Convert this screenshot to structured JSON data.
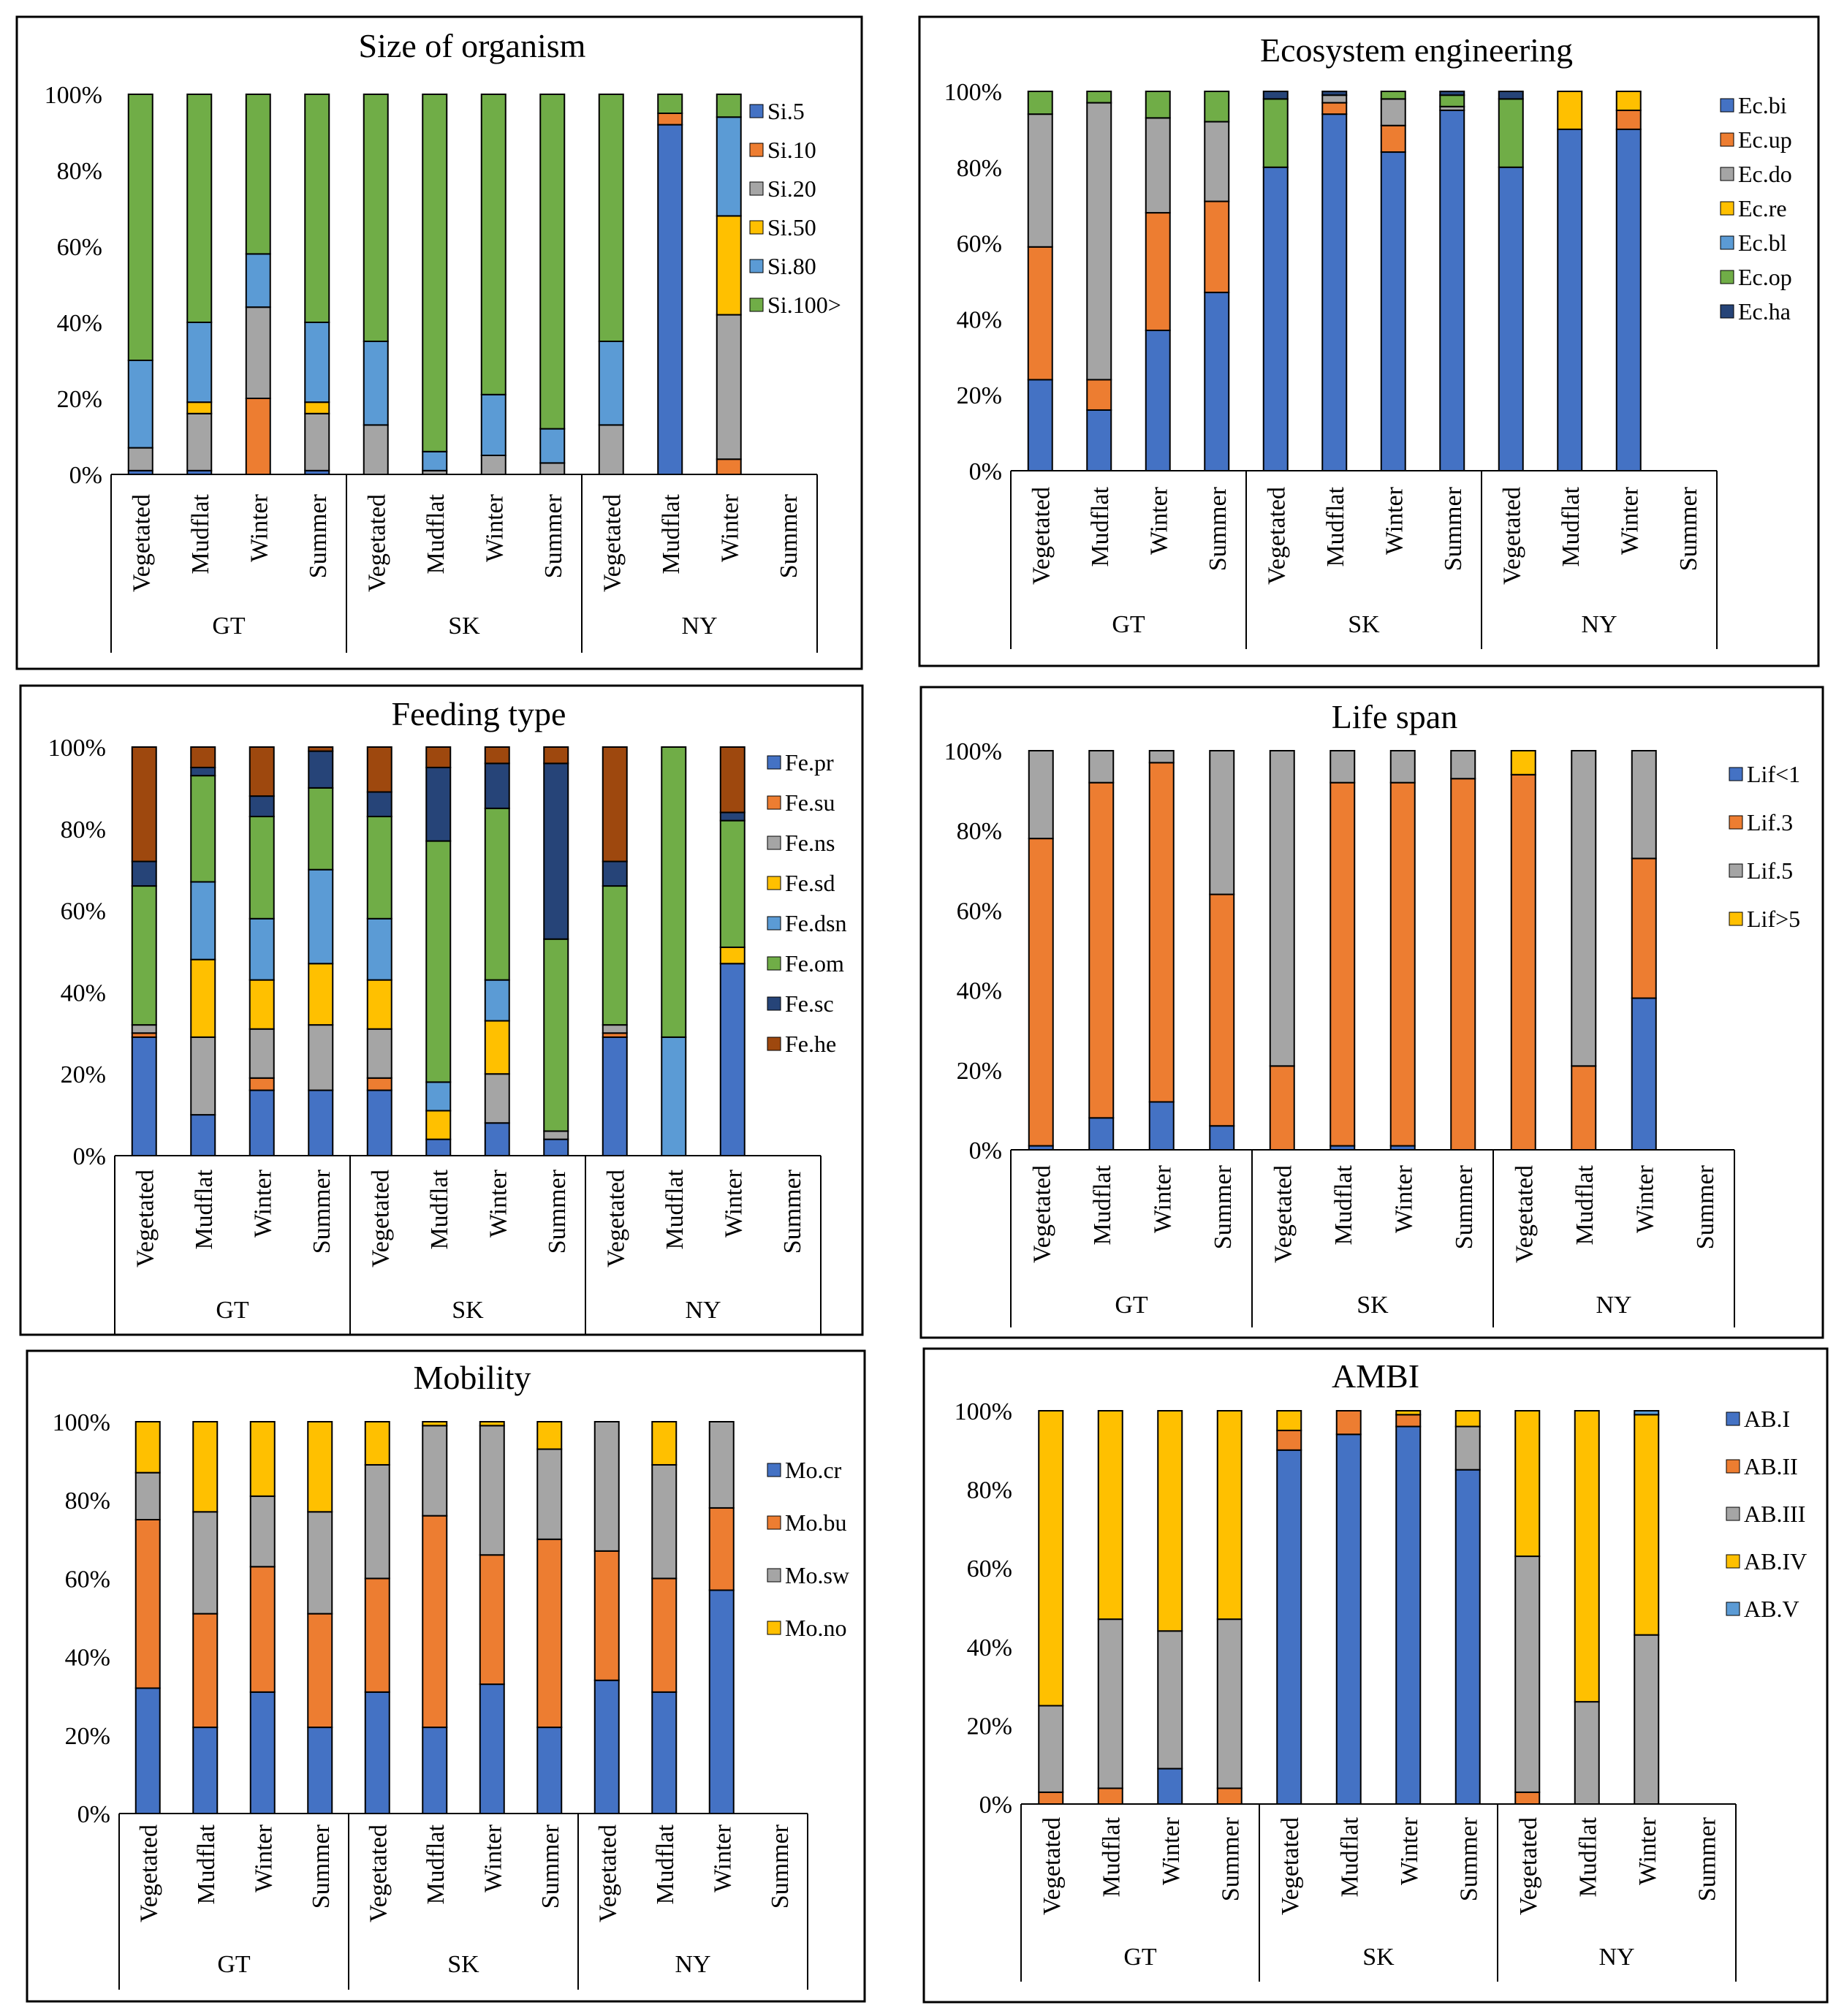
{
  "figure": {
    "group_names": [
      "GT",
      "SK",
      "NY"
    ],
    "category_names": [
      "Vegetated",
      "Mudflat",
      "Winter",
      "Summer"
    ],
    "y_ticks": [
      "0%",
      "20%",
      "40%",
      "60%",
      "80%",
      "100%"
    ]
  },
  "chart_data": [
    {
      "type": "bar",
      "stacked": true,
      "title": "Size of organism",
      "ylabel": "",
      "xlabel": "",
      "ylim": [
        0,
        100
      ],
      "y_unit": "%",
      "categories": [
        "Vegetated",
        "Mudflat",
        "Winter",
        "Summer",
        "Vegetated",
        "Mudflat",
        "Winter",
        "Summer",
        "Vegetated",
        "Mudflat",
        "Winter",
        "Summer"
      ],
      "groups": [
        "GT",
        "SK",
        "NY"
      ],
      "series": [
        {
          "name": "Si.5",
          "color": "#4472C4",
          "values": [
            1,
            1,
            0,
            1,
            0,
            0,
            0,
            0,
            0,
            92,
            0,
            0
          ]
        },
        {
          "name": "Si.10",
          "color": "#ED7D31",
          "values": [
            0,
            0,
            20,
            0,
            0,
            0,
            0,
            0,
            0,
            3,
            4,
            0
          ]
        },
        {
          "name": "Si.20",
          "color": "#A5A5A5",
          "values": [
            6,
            15,
            24,
            15,
            13,
            1,
            5,
            3,
            13,
            0,
            38,
            0
          ]
        },
        {
          "name": "Si.50",
          "color": "#FFC000",
          "values": [
            0,
            3,
            0,
            3,
            0,
            0,
            0,
            0,
            0,
            0,
            26,
            0
          ]
        },
        {
          "name": "Si.80",
          "color": "#5B9BD5",
          "values": [
            23,
            21,
            14,
            21,
            22,
            5,
            16,
            9,
            22,
            0,
            26,
            0
          ]
        },
        {
          "name": "Si.100>",
          "color": "#70AD47",
          "values": [
            70,
            60,
            42,
            60,
            65,
            94,
            79,
            88,
            65,
            5,
            6,
            0
          ]
        }
      ]
    },
    {
      "type": "bar",
      "stacked": true,
      "title": "Ecosystem engineering",
      "ylabel": "",
      "xlabel": "",
      "ylim": [
        0,
        100
      ],
      "y_unit": "%",
      "categories": [
        "Vegetated",
        "Mudflat",
        "Winter",
        "Summer",
        "Vegetated",
        "Mudflat",
        "Winter",
        "Summer",
        "Vegetated",
        "Mudflat",
        "Winter",
        "Summer"
      ],
      "groups": [
        "GT",
        "SK",
        "NY"
      ],
      "series": [
        {
          "name": "Ec.bi",
          "color": "#4472C4",
          "values": [
            24,
            16,
            37,
            47,
            80,
            94,
            84,
            95,
            80,
            90,
            90,
            0
          ]
        },
        {
          "name": "Ec.up",
          "color": "#ED7D31",
          "values": [
            35,
            8,
            31,
            24,
            0,
            3,
            7,
            0,
            0,
            0,
            5,
            0
          ]
        },
        {
          "name": "Ec.do",
          "color": "#A5A5A5",
          "values": [
            35,
            73,
            25,
            21,
            0,
            2,
            7,
            1,
            0,
            0,
            0,
            0
          ]
        },
        {
          "name": "Ec.re",
          "color": "#FFC000",
          "values": [
            0,
            0,
            0,
            0,
            0,
            0,
            0,
            0,
            0,
            10,
            5,
            0
          ]
        },
        {
          "name": "Ec.bl",
          "color": "#5B9BD5",
          "values": [
            0,
            0,
            0,
            0,
            0,
            0,
            0,
            0,
            0,
            0,
            0,
            0
          ]
        },
        {
          "name": "Ec.op",
          "color": "#70AD47",
          "values": [
            6,
            3,
            7,
            8,
            18,
            0,
            2,
            3,
            18,
            0,
            0,
            0
          ]
        },
        {
          "name": "Ec.ha",
          "color": "#264478",
          "values": [
            0,
            0,
            0,
            0,
            2,
            1,
            0,
            1,
            2,
            0,
            0,
            0
          ]
        }
      ]
    },
    {
      "type": "bar",
      "stacked": true,
      "title": "Feeding type",
      "ylabel": "",
      "xlabel": "",
      "ylim": [
        0,
        100
      ],
      "y_unit": "%",
      "categories": [
        "Vegetated",
        "Mudflat",
        "Winter",
        "Summer",
        "Vegetated",
        "Mudflat",
        "Winter",
        "Summer",
        "Vegetated",
        "Mudflat",
        "Winter",
        "Summer"
      ],
      "groups": [
        "GT",
        "SK",
        "NY"
      ],
      "series": [
        {
          "name": "Fe.pr",
          "color": "#4472C4",
          "values": [
            29,
            10,
            16,
            16,
            16,
            4,
            8,
            4,
            29,
            0,
            47,
            0
          ]
        },
        {
          "name": "Fe.su",
          "color": "#ED7D31",
          "values": [
            1,
            0,
            3,
            0,
            3,
            0,
            0,
            0,
            1,
            0,
            0,
            0
          ]
        },
        {
          "name": "Fe.ns",
          "color": "#A5A5A5",
          "values": [
            2,
            19,
            12,
            16,
            12,
            0,
            12,
            2,
            2,
            0,
            0,
            0
          ]
        },
        {
          "name": "Fe.sd",
          "color": "#FFC000",
          "values": [
            0,
            19,
            12,
            15,
            12,
            7,
            13,
            0,
            0,
            0,
            4,
            0
          ]
        },
        {
          "name": "Fe.dsn",
          "color": "#5B9BD5",
          "values": [
            0,
            19,
            15,
            23,
            15,
            7,
            10,
            0,
            0,
            29,
            0,
            0
          ]
        },
        {
          "name": "Fe.om",
          "color": "#70AD47",
          "values": [
            34,
            26,
            25,
            20,
            25,
            59,
            42,
            47,
            34,
            71,
            31,
            0
          ]
        },
        {
          "name": "Fe.sc",
          "color": "#264478",
          "values": [
            6,
            2,
            5,
            9,
            6,
            18,
            11,
            43,
            6,
            0,
            2,
            0
          ]
        },
        {
          "name": "Fe.he",
          "color": "#9E480E",
          "values": [
            28,
            5,
            12,
            1,
            11,
            5,
            4,
            4,
            28,
            0,
            16,
            0
          ]
        }
      ]
    },
    {
      "type": "bar",
      "stacked": true,
      "title": "Life span",
      "ylabel": "",
      "xlabel": "",
      "ylim": [
        0,
        100
      ],
      "y_unit": "%",
      "categories": [
        "Vegetated",
        "Mudflat",
        "Winter",
        "Summer",
        "Vegetated",
        "Mudflat",
        "Winter",
        "Summer",
        "Vegetated",
        "Mudflat",
        "Winter",
        "Summer"
      ],
      "groups": [
        "GT",
        "SK",
        "NY"
      ],
      "series": [
        {
          "name": "Lif<1",
          "color": "#4472C4",
          "values": [
            1,
            8,
            12,
            6,
            0,
            1,
            1,
            0,
            0,
            0,
            38,
            0
          ]
        },
        {
          "name": "Lif.3",
          "color": "#ED7D31",
          "values": [
            77,
            84,
            85,
            58,
            21,
            91,
            91,
            93,
            94,
            21,
            35,
            0
          ]
        },
        {
          "name": "Lif.5",
          "color": "#A5A5A5",
          "values": [
            22,
            8,
            3,
            36,
            79,
            8,
            8,
            7,
            0,
            79,
            27,
            0
          ]
        },
        {
          "name": "Lif>5",
          "color": "#FFC000",
          "values": [
            0,
            0,
            0,
            0,
            0,
            0,
            0,
            0,
            6,
            0,
            0,
            0
          ]
        }
      ]
    },
    {
      "type": "bar",
      "stacked": true,
      "title": "Mobility",
      "ylabel": "",
      "xlabel": "",
      "ylim": [
        0,
        100
      ],
      "y_unit": "%",
      "categories": [
        "Vegetated",
        "Mudflat",
        "Winter",
        "Summer",
        "Vegetated",
        "Mudflat",
        "Winter",
        "Summer",
        "Vegetated",
        "Mudflat",
        "Winter",
        "Summer"
      ],
      "groups": [
        "GT",
        "SK",
        "NY"
      ],
      "series": [
        {
          "name": "Mo.cr",
          "color": "#4472C4",
          "values": [
            32,
            22,
            31,
            22,
            31,
            22,
            33,
            22,
            34,
            31,
            57,
            0
          ]
        },
        {
          "name": "Mo.bu",
          "color": "#ED7D31",
          "values": [
            43,
            29,
            32,
            29,
            29,
            54,
            33,
            48,
            33,
            29,
            21,
            0
          ]
        },
        {
          "name": "Mo.sw",
          "color": "#A5A5A5",
          "values": [
            12,
            26,
            18,
            26,
            29,
            23,
            33,
            23,
            33,
            29,
            22,
            0
          ]
        },
        {
          "name": "Mo.no",
          "color": "#FFC000",
          "values": [
            13,
            23,
            19,
            23,
            11,
            1,
            1,
            7,
            0,
            11,
            0,
            0
          ]
        }
      ]
    },
    {
      "type": "bar",
      "stacked": true,
      "title": "AMBI",
      "ylabel": "",
      "xlabel": "",
      "ylim": [
        0,
        100
      ],
      "y_unit": "%",
      "categories": [
        "Vegetated",
        "Mudflat",
        "Winter",
        "Summer",
        "Vegetated",
        "Mudflat",
        "Winter",
        "Summer",
        "Vegetated",
        "Mudflat",
        "Winter",
        "Summer"
      ],
      "groups": [
        "GT",
        "SK",
        "NY"
      ],
      "series": [
        {
          "name": "AB.I",
          "color": "#4472C4",
          "values": [
            0,
            0,
            9,
            0,
            90,
            94,
            96,
            85,
            0,
            0,
            0,
            0
          ]
        },
        {
          "name": "AB.II",
          "color": "#ED7D31",
          "values": [
            3,
            4,
            0,
            4,
            5,
            6,
            3,
            0,
            3,
            0,
            0,
            0
          ]
        },
        {
          "name": "AB.III",
          "color": "#A5A5A5",
          "values": [
            22,
            43,
            35,
            43,
            0,
            0,
            0,
            11,
            60,
            26,
            43,
            0
          ]
        },
        {
          "name": "AB.IV",
          "color": "#FFC000",
          "values": [
            75,
            53,
            56,
            53,
            5,
            0,
            1,
            4,
            37,
            74,
            56,
            0
          ]
        },
        {
          "name": "AB.V",
          "color": "#5B9BD5",
          "values": [
            0,
            0,
            0,
            0,
            0,
            0,
            0,
            0,
            0,
            0,
            1,
            0
          ]
        }
      ]
    }
  ]
}
